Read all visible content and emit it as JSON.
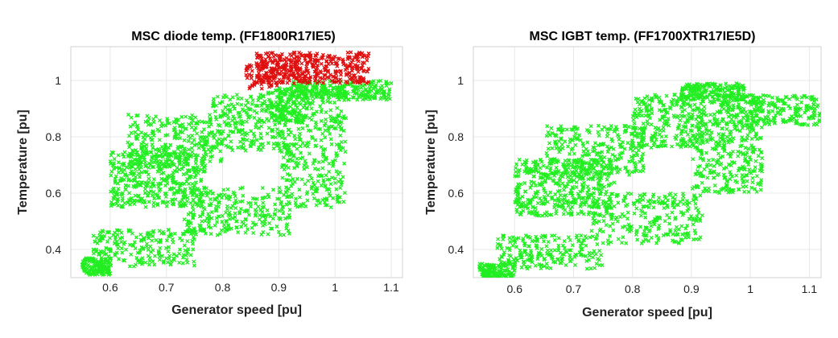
{
  "chart_data": [
    {
      "type": "scatter",
      "title": "MSC diode temp. (FF1800R17IE5)",
      "xlabel": "Generator speed [pu]",
      "ylabel": "Temperature [pu]",
      "xlim": [
        0.53,
        1.12
      ],
      "ylim": [
        0.3,
        1.12
      ],
      "x_ticks": [
        "0.6",
        "0.7",
        "0.8",
        "0.9",
        "1",
        "1.1"
      ],
      "y_ticks": [
        "0.4",
        "0.6",
        "0.8",
        "1"
      ],
      "grid": true,
      "marker": "x",
      "colors": {
        "normal": "#22ee22",
        "over_limit": "#e01010"
      },
      "series": [
        {
          "color": "#22ee22",
          "clusters": [
            {
              "x": [
                0.55,
                0.6
              ],
              "y": [
                0.31,
                0.37
              ],
              "n": 140
            },
            {
              "x": [
                0.57,
                0.75
              ],
              "y": [
                0.34,
                0.47
              ],
              "n": 220
            },
            {
              "x": [
                0.73,
                0.92
              ],
              "y": [
                0.45,
                0.62
              ],
              "n": 260
            },
            {
              "x": [
                0.6,
                0.77
              ],
              "y": [
                0.55,
                0.75
              ],
              "n": 420
            },
            {
              "x": [
                0.63,
                0.8
              ],
              "y": [
                0.7,
                0.88
              ],
              "n": 280
            },
            {
              "x": [
                0.78,
                0.92
              ],
              "y": [
                0.75,
                0.95
              ],
              "n": 240
            },
            {
              "x": [
                0.88,
                0.95
              ],
              "y": [
                0.85,
                0.97
              ],
              "n": 120
            },
            {
              "x": [
                0.9,
                1.02
              ],
              "y": [
                0.55,
                0.98
              ],
              "n": 380
            },
            {
              "x": [
                0.92,
                1.1
              ],
              "y": [
                0.93,
                1.0
              ],
              "n": 260
            }
          ]
        },
        {
          "color": "#e01010",
          "clusters": [
            {
              "x": [
                0.86,
                1.06
              ],
              "y": [
                0.99,
                1.1
              ],
              "n": 420
            },
            {
              "x": [
                0.84,
                0.9
              ],
              "y": [
                0.97,
                1.06
              ],
              "n": 60
            }
          ]
        }
      ]
    },
    {
      "type": "scatter",
      "title": "MSC IGBT temp. (FF1700XTR17IE5D)",
      "xlabel": "Generator speed [pu]",
      "ylabel": "Temperature [pu]",
      "xlim": [
        0.53,
        1.12
      ],
      "ylim": [
        0.3,
        1.12
      ],
      "x_ticks": [
        "0.6",
        "0.7",
        "0.8",
        "0.9",
        "1",
        "1.1"
      ],
      "y_ticks": [
        "0.4",
        "0.6",
        "0.8",
        "1"
      ],
      "grid": true,
      "marker": "x",
      "series": [
        {
          "color": "#22ee22",
          "clusters": [
            {
              "x": [
                0.54,
                0.6
              ],
              "y": [
                0.3,
                0.35
              ],
              "n": 140
            },
            {
              "x": [
                0.57,
                0.75
              ],
              "y": [
                0.33,
                0.45
              ],
              "n": 220
            },
            {
              "x": [
                0.73,
                0.92
              ],
              "y": [
                0.42,
                0.6
              ],
              "n": 260
            },
            {
              "x": [
                0.6,
                0.77
              ],
              "y": [
                0.52,
                0.72
              ],
              "n": 420
            },
            {
              "x": [
                0.65,
                0.82
              ],
              "y": [
                0.66,
                0.84
              ],
              "n": 280
            },
            {
              "x": [
                0.8,
                0.92
              ],
              "y": [
                0.76,
                0.95
              ],
              "n": 260
            },
            {
              "x": [
                0.9,
                1.02
              ],
              "y": [
                0.6,
                0.95
              ],
              "n": 380
            },
            {
              "x": [
                0.88,
                0.99
              ],
              "y": [
                0.93,
                0.99
              ],
              "n": 200
            },
            {
              "x": [
                0.95,
                1.12
              ],
              "y": [
                0.84,
                0.95
              ],
              "n": 240
            }
          ]
        }
      ]
    }
  ]
}
